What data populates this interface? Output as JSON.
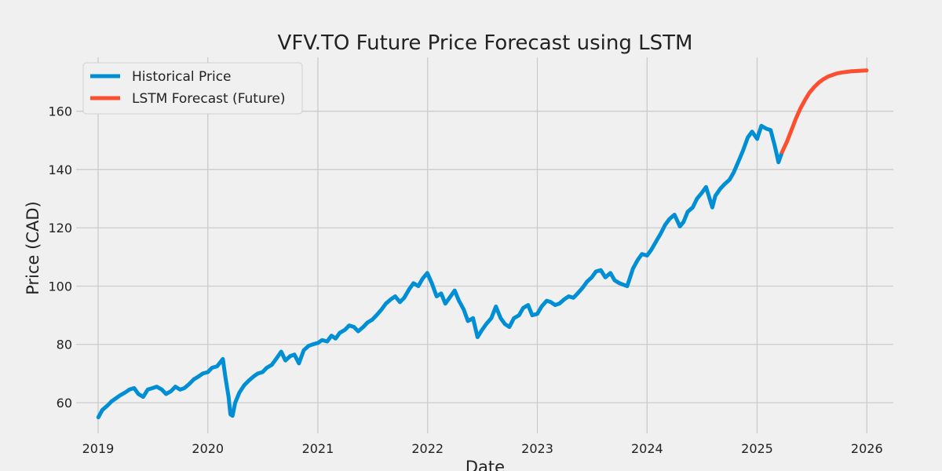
{
  "chart_data": {
    "type": "line",
    "title": "VFV.TO Future Price Forecast using LSTM",
    "xlabel": "Date",
    "ylabel": "Price (CAD)",
    "xlim": [
      "2018-10-20",
      "2026-03-30"
    ],
    "ylim": [
      49.5,
      178.5
    ],
    "x_ticks": [
      "2019",
      "2020",
      "2021",
      "2022",
      "2023",
      "2024",
      "2025",
      "2026"
    ],
    "y_ticks": [
      60,
      80,
      100,
      120,
      140,
      160
    ],
    "grid": true,
    "legend_position": "top-left",
    "series": [
      {
        "name": "Historical Price",
        "color": "#008fd5",
        "points": [
          [
            "2019-01-02",
            55.0
          ],
          [
            "2019-01-15",
            57.5
          ],
          [
            "2019-02-01",
            59.0
          ],
          [
            "2019-02-15",
            60.5
          ],
          [
            "2019-03-01",
            61.5
          ],
          [
            "2019-03-15",
            62.5
          ],
          [
            "2019-04-01",
            63.5
          ],
          [
            "2019-04-15",
            64.5
          ],
          [
            "2019-05-01",
            65.0
          ],
          [
            "2019-05-15",
            63.0
          ],
          [
            "2019-05-31",
            62.0
          ],
          [
            "2019-06-15",
            64.5
          ],
          [
            "2019-07-01",
            65.0
          ],
          [
            "2019-07-15",
            65.5
          ],
          [
            "2019-08-01",
            64.5
          ],
          [
            "2019-08-15",
            63.0
          ],
          [
            "2019-09-01",
            64.0
          ],
          [
            "2019-09-15",
            65.5
          ],
          [
            "2019-10-01",
            64.5
          ],
          [
            "2019-10-15",
            65.0
          ],
          [
            "2019-11-01",
            66.5
          ],
          [
            "2019-11-15",
            68.0
          ],
          [
            "2019-12-01",
            69.0
          ],
          [
            "2019-12-15",
            70.0
          ],
          [
            "2020-01-01",
            70.5
          ],
          [
            "2020-01-15",
            72.0
          ],
          [
            "2020-02-01",
            72.5
          ],
          [
            "2020-02-20",
            75.0
          ],
          [
            "2020-02-28",
            69.0
          ],
          [
            "2020-03-10",
            62.0
          ],
          [
            "2020-03-16",
            56.0
          ],
          [
            "2020-03-23",
            55.5
          ],
          [
            "2020-04-01",
            60.0
          ],
          [
            "2020-04-15",
            63.5
          ],
          [
            "2020-05-01",
            66.0
          ],
          [
            "2020-05-15",
            67.5
          ],
          [
            "2020-06-01",
            69.0
          ],
          [
            "2020-06-15",
            70.0
          ],
          [
            "2020-07-01",
            70.5
          ],
          [
            "2020-07-15",
            72.0
          ],
          [
            "2020-08-01",
            73.0
          ],
          [
            "2020-08-15",
            75.0
          ],
          [
            "2020-09-01",
            77.5
          ],
          [
            "2020-09-15",
            74.5
          ],
          [
            "2020-10-01",
            76.0
          ],
          [
            "2020-10-15",
            76.5
          ],
          [
            "2020-10-30",
            73.5
          ],
          [
            "2020-11-15",
            78.0
          ],
          [
            "2020-12-01",
            79.5
          ],
          [
            "2020-12-15",
            80.0
          ],
          [
            "2021-01-01",
            80.5
          ],
          [
            "2021-01-15",
            81.5
          ],
          [
            "2021-02-01",
            81.0
          ],
          [
            "2021-02-15",
            83.0
          ],
          [
            "2021-03-01",
            82.0
          ],
          [
            "2021-03-15",
            84.0
          ],
          [
            "2021-04-01",
            85.0
          ],
          [
            "2021-04-15",
            86.5
          ],
          [
            "2021-05-01",
            86.0
          ],
          [
            "2021-05-15",
            84.5
          ],
          [
            "2021-06-01",
            86.0
          ],
          [
            "2021-06-15",
            87.5
          ],
          [
            "2021-07-01",
            88.5
          ],
          [
            "2021-07-15",
            90.0
          ],
          [
            "2021-08-01",
            92.0
          ],
          [
            "2021-08-15",
            94.0
          ],
          [
            "2021-09-01",
            95.5
          ],
          [
            "2021-09-15",
            96.5
          ],
          [
            "2021-10-01",
            94.5
          ],
          [
            "2021-10-15",
            96.0
          ],
          [
            "2021-11-01",
            99.0
          ],
          [
            "2021-11-15",
            101.0
          ],
          [
            "2021-12-01",
            100.0
          ],
          [
            "2021-12-15",
            102.5
          ],
          [
            "2021-12-31",
            104.5
          ],
          [
            "2022-01-15",
            101.0
          ],
          [
            "2022-01-31",
            96.5
          ],
          [
            "2022-02-15",
            97.5
          ],
          [
            "2022-03-01",
            94.0
          ],
          [
            "2022-03-15",
            96.0
          ],
          [
            "2022-04-01",
            98.5
          ],
          [
            "2022-04-15",
            95.0
          ],
          [
            "2022-05-01",
            92.0
          ],
          [
            "2022-05-15",
            88.0
          ],
          [
            "2022-06-01",
            89.0
          ],
          [
            "2022-06-16",
            82.5
          ],
          [
            "2022-07-01",
            85.0
          ],
          [
            "2022-07-15",
            87.0
          ],
          [
            "2022-08-01",
            89.0
          ],
          [
            "2022-08-16",
            93.0
          ],
          [
            "2022-09-01",
            89.0
          ],
          [
            "2022-09-15",
            87.0
          ],
          [
            "2022-09-30",
            86.0
          ],
          [
            "2022-10-15",
            89.0
          ],
          [
            "2022-11-01",
            90.0
          ],
          [
            "2022-11-15",
            92.5
          ],
          [
            "2022-12-01",
            93.5
          ],
          [
            "2022-12-15",
            90.0
          ],
          [
            "2023-01-01",
            90.5
          ],
          [
            "2023-01-15",
            93.0
          ],
          [
            "2023-02-01",
            95.0
          ],
          [
            "2023-02-15",
            94.5
          ],
          [
            "2023-03-01",
            93.5
          ],
          [
            "2023-03-15",
            94.0
          ],
          [
            "2023-04-01",
            95.5
          ],
          [
            "2023-04-15",
            96.5
          ],
          [
            "2023-05-01",
            96.0
          ],
          [
            "2023-05-15",
            97.5
          ],
          [
            "2023-06-01",
            99.5
          ],
          [
            "2023-06-15",
            101.5
          ],
          [
            "2023-07-01",
            103.0
          ],
          [
            "2023-07-15",
            105.0
          ],
          [
            "2023-07-31",
            105.5
          ],
          [
            "2023-08-15",
            103.0
          ],
          [
            "2023-09-01",
            104.5
          ],
          [
            "2023-09-15",
            102.0
          ],
          [
            "2023-10-01",
            101.0
          ],
          [
            "2023-10-27",
            100.0
          ],
          [
            "2023-11-15",
            106.0
          ],
          [
            "2023-12-01",
            109.0
          ],
          [
            "2023-12-15",
            111.0
          ],
          [
            "2024-01-01",
            110.5
          ],
          [
            "2024-01-15",
            112.5
          ],
          [
            "2024-02-01",
            115.5
          ],
          [
            "2024-02-15",
            118.0
          ],
          [
            "2024-03-01",
            121.0
          ],
          [
            "2024-03-15",
            123.0
          ],
          [
            "2024-04-01",
            124.5
          ],
          [
            "2024-04-19",
            120.5
          ],
          [
            "2024-05-01",
            122.0
          ],
          [
            "2024-05-15",
            125.5
          ],
          [
            "2024-06-01",
            127.0
          ],
          [
            "2024-06-15",
            130.0
          ],
          [
            "2024-07-01",
            132.0
          ],
          [
            "2024-07-15",
            134.0
          ],
          [
            "2024-08-05",
            127.0
          ],
          [
            "2024-08-15",
            131.0
          ],
          [
            "2024-09-01",
            133.5
          ],
          [
            "2024-09-15",
            135.0
          ],
          [
            "2024-10-01",
            136.5
          ],
          [
            "2024-10-15",
            139.0
          ],
          [
            "2024-11-01",
            143.0
          ],
          [
            "2024-11-15",
            146.5
          ],
          [
            "2024-12-01",
            151.0
          ],
          [
            "2024-12-15",
            153.0
          ],
          [
            "2025-01-01",
            150.5
          ],
          [
            "2025-01-15",
            155.0
          ],
          [
            "2025-02-01",
            154.0
          ],
          [
            "2025-02-15",
            153.5
          ],
          [
            "2025-03-01",
            148.0
          ],
          [
            "2025-03-13",
            142.5
          ],
          [
            "2025-03-25",
            146.0
          ]
        ]
      },
      {
        "name": "LSTM Forecast (Future)",
        "color": "#fc4f30",
        "points": [
          [
            "2025-03-25",
            146.0
          ],
          [
            "2025-04-10",
            149.5
          ],
          [
            "2025-04-25",
            153.5
          ],
          [
            "2025-05-10",
            157.5
          ],
          [
            "2025-05-25",
            161.0
          ],
          [
            "2025-06-10",
            164.0
          ],
          [
            "2025-06-25",
            166.5
          ],
          [
            "2025-07-10",
            168.3
          ],
          [
            "2025-07-25",
            169.8
          ],
          [
            "2025-08-10",
            171.0
          ],
          [
            "2025-08-25",
            171.9
          ],
          [
            "2025-09-10",
            172.5
          ],
          [
            "2025-09-25",
            173.0
          ],
          [
            "2025-10-10",
            173.3
          ],
          [
            "2025-10-25",
            173.5
          ],
          [
            "2025-11-10",
            173.7
          ],
          [
            "2025-11-25",
            173.8
          ],
          [
            "2025-12-10",
            173.9
          ],
          [
            "2025-12-31",
            174.0
          ]
        ]
      }
    ]
  }
}
